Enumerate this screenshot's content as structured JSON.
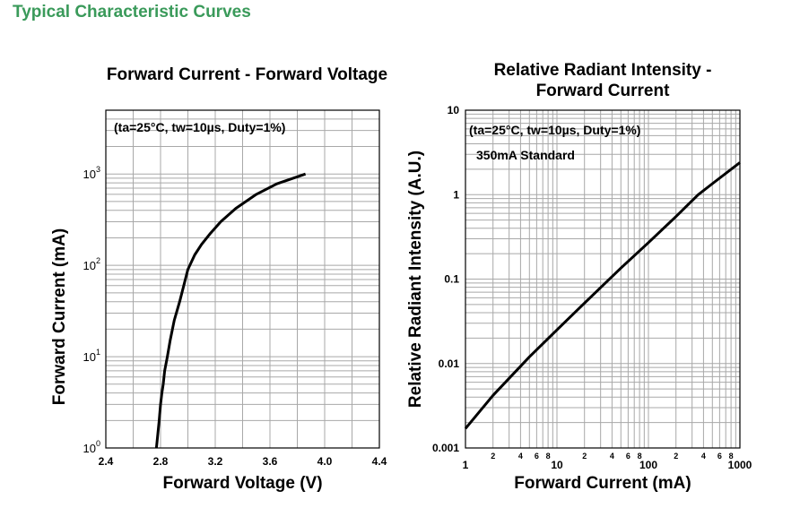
{
  "page_title": "Typical Characteristic Curves",
  "chart_data": [
    {
      "type": "line",
      "title": "Forward Current - Forward Voltage",
      "xlabel": "Forward Voltage (V)",
      "ylabel": "Forward Current (mA)",
      "xscale": "linear",
      "yscale": "log",
      "xlim": [
        2.4,
        4.4
      ],
      "ylim": [
        1,
        5000
      ],
      "grid": true,
      "x_ticks": [
        "2.4",
        "2.8",
        "3.2",
        "3.6",
        "4.0",
        "4.4"
      ],
      "y_ticks": [
        {
          "base": "10",
          "exp": "0"
        },
        {
          "base": "10",
          "exp": "1"
        },
        {
          "base": "10",
          "exp": "2"
        },
        {
          "base": "10",
          "exp": "3"
        }
      ],
      "annotation": "(ta=25°C, tw=10µs, Duty=1%)",
      "series": [
        {
          "x": [
            2.77,
            2.78,
            2.79,
            2.8,
            2.81,
            2.82,
            2.83,
            2.85,
            2.87,
            2.9,
            2.94,
            2.97,
            3.0,
            3.05,
            3.1,
            3.16,
            3.24,
            3.35,
            3.5,
            3.65,
            3.75,
            3.86
          ],
          "y": [
            1,
            1.4,
            2,
            3,
            4,
            5,
            7,
            10,
            15,
            25,
            40,
            60,
            90,
            130,
            170,
            220,
            300,
            420,
            600,
            780,
            880,
            1000
          ]
        }
      ]
    },
    {
      "type": "line",
      "title": [
        "Relative Radiant Intensity -",
        "Forward Current"
      ],
      "xlabel": "Forward Current (mA)",
      "ylabel": "Relative Radiant Intensity (A.U.)",
      "xscale": "log",
      "yscale": "log",
      "xlim": [
        1,
        1000
      ],
      "ylim": [
        0.001,
        10
      ],
      "grid": true,
      "x_ticks": [
        "1",
        "10",
        "100",
        "1000"
      ],
      "x_minor_ticks": [
        "2",
        "4",
        "6",
        "8"
      ],
      "y_ticks": [
        "0.001",
        "0.01",
        "0.1",
        "1",
        "10"
      ],
      "annotation": "(ta=25°C, tw=10µs, Duty=1%)",
      "annotation2": "350mA Standard",
      "series": [
        {
          "x": [
            1,
            2,
            5,
            10,
            20,
            50,
            100,
            200,
            350,
            500,
            1000
          ],
          "y": [
            0.0017,
            0.0042,
            0.012,
            0.025,
            0.052,
            0.135,
            0.27,
            0.55,
            1.0,
            1.35,
            2.4
          ]
        }
      ]
    }
  ]
}
